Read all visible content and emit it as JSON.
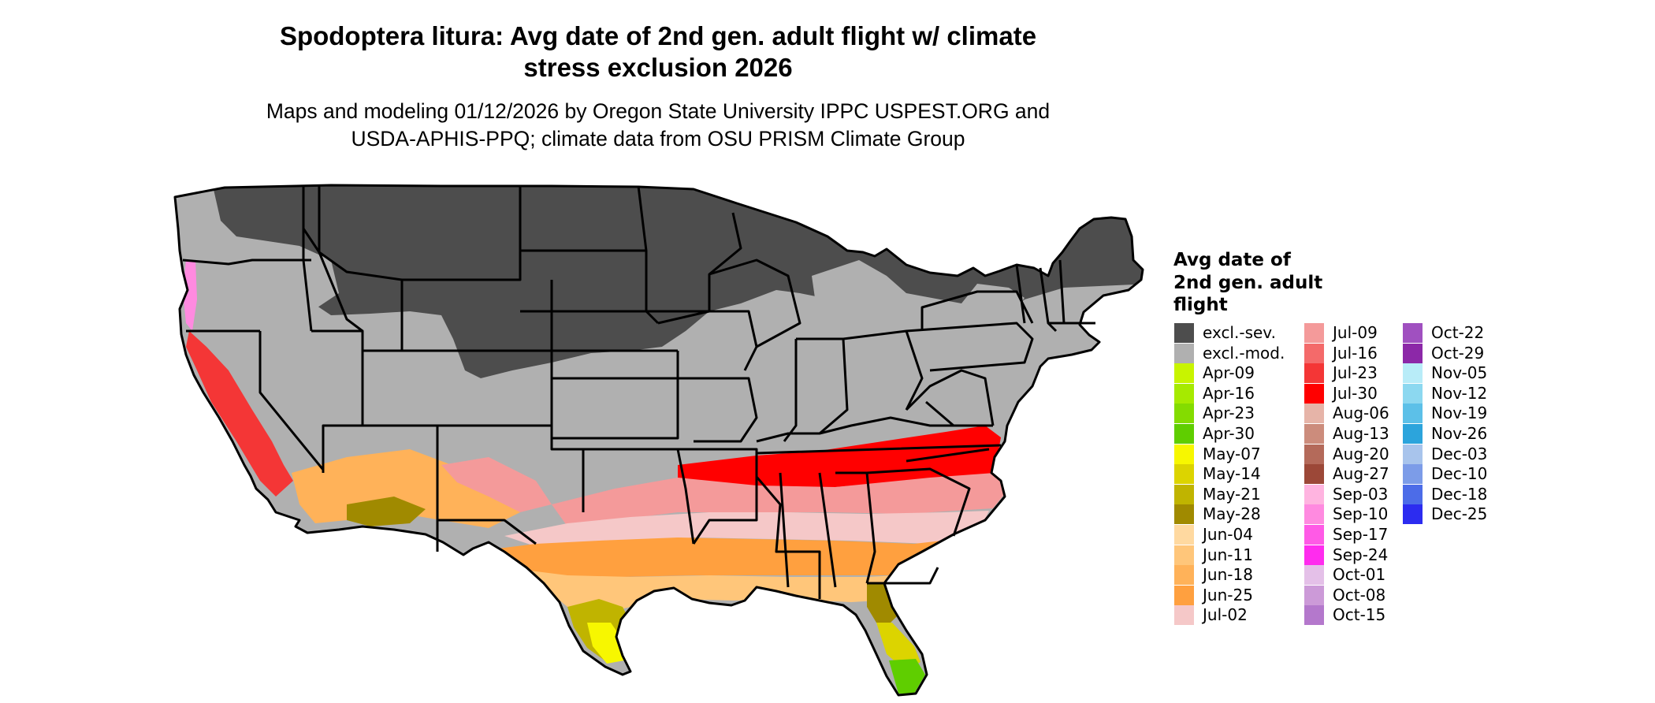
{
  "title_line1": "Spodoptera litura: Avg date of 2nd gen. adult flight w/ climate",
  "title_line2": "stress exclusion 2026",
  "subtitle_line1": "Maps and modeling 01/12/2026 by Oregon State University IPPC USPEST.ORG and",
  "subtitle_line2": "USDA-APHIS-PPQ; climate data from OSU PRISM Climate Group",
  "legend": {
    "title_line1": "Avg date of",
    "title_line2": "2nd gen. adult",
    "title_line3": "flight",
    "columns": [
      [
        {
          "label": "excl.-sev.",
          "color": "#4d4d4d"
        },
        {
          "label": "excl.-mod.",
          "color": "#b0b0b0"
        },
        {
          "label": "Apr-09",
          "color": "#c8f400"
        },
        {
          "label": "Apr-16",
          "color": "#a6ea00"
        },
        {
          "label": "Apr-23",
          "color": "#84dc00"
        },
        {
          "label": "Apr-30",
          "color": "#5fce00"
        },
        {
          "label": "May-07",
          "color": "#f7f700"
        },
        {
          "label": "May-14",
          "color": "#dcd400"
        },
        {
          "label": "May-21",
          "color": "#c0b400"
        },
        {
          "label": "May-28",
          "color": "#a08a00"
        },
        {
          "label": "Jun-04",
          "color": "#ffd9a0"
        },
        {
          "label": "Jun-11",
          "color": "#ffc67a"
        },
        {
          "label": "Jun-18",
          "color": "#ffb259"
        },
        {
          "label": "Jun-25",
          "color": "#ffa03f"
        },
        {
          "label": "Jul-02",
          "color": "#f5c8c8"
        }
      ],
      [
        {
          "label": "Jul-09",
          "color": "#f49a9a"
        },
        {
          "label": "Jul-16",
          "color": "#f46a6a"
        },
        {
          "label": "Jul-23",
          "color": "#f43636"
        },
        {
          "label": "Jul-30",
          "color": "#ff0000"
        },
        {
          "label": "Aug-06",
          "color": "#e6b4a8"
        },
        {
          "label": "Aug-13",
          "color": "#cc8c7c"
        },
        {
          "label": "Aug-20",
          "color": "#b46a5a"
        },
        {
          "label": "Aug-27",
          "color": "#9c4838"
        },
        {
          "label": "Sep-03",
          "color": "#ffb4e0"
        },
        {
          "label": "Sep-10",
          "color": "#ff8ae0"
        },
        {
          "label": "Sep-17",
          "color": "#ff5ae6"
        },
        {
          "label": "Sep-24",
          "color": "#ff2cee"
        },
        {
          "label": "Oct-01",
          "color": "#e4c0e8"
        },
        {
          "label": "Oct-08",
          "color": "#cc9ad8"
        },
        {
          "label": "Oct-15",
          "color": "#b478cc"
        }
      ],
      [
        {
          "label": "Oct-22",
          "color": "#a050c0"
        },
        {
          "label": "Oct-29",
          "color": "#8c28a8"
        },
        {
          "label": "Nov-05",
          "color": "#b8ecf8"
        },
        {
          "label": "Nov-12",
          "color": "#8cd8f0"
        },
        {
          "label": "Nov-19",
          "color": "#5cc0e8"
        },
        {
          "label": "Nov-26",
          "color": "#2ca4dc"
        },
        {
          "label": "Dec-03",
          "color": "#a8c4ec"
        },
        {
          "label": "Dec-10",
          "color": "#7c9ce8"
        },
        {
          "label": "Dec-18",
          "color": "#4c6ce8"
        },
        {
          "label": "Dec-25",
          "color": "#2c2cf0"
        }
      ]
    ]
  }
}
